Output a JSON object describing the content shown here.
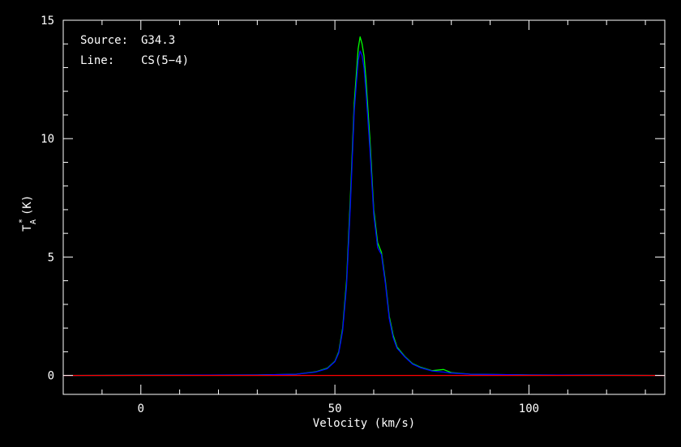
{
  "chart_data": {
    "type": "line",
    "title": "",
    "annotations": {
      "source_key": "Source:",
      "source_value": "G34.3",
      "line_key": "Line:",
      "line_value": "CS(5−4)"
    },
    "xlabel": "Velocity (km/s)",
    "ylabel_main": "T",
    "ylabel_sub": "A",
    "ylabel_sup": "*",
    "ylabel_unit": "(K)",
    "xlim": [
      -20,
      135
    ],
    "ylim": [
      -0.8,
      15
    ],
    "x_ticks": [
      0,
      50,
      100
    ],
    "y_ticks": [
      0,
      5,
      10,
      15
    ],
    "x_minor_step": 10,
    "y_minor_step": 1,
    "grid": false,
    "background": "#000000",
    "axis_color": "#ffffff",
    "series": [
      {
        "color": "#00ff00",
        "x": [
          -20,
          30,
          40,
          45,
          48,
          50,
          51,
          52,
          53,
          54,
          55,
          56,
          56.5,
          57,
          57.5,
          58,
          59,
          60,
          61,
          62,
          63,
          64,
          65,
          66,
          68,
          70,
          72,
          75,
          78,
          80,
          85,
          90,
          100,
          135
        ],
        "values": [
          0,
          0.02,
          0.05,
          0.15,
          0.3,
          0.6,
          1.0,
          2.0,
          4.0,
          7.5,
          11.5,
          13.8,
          14.3,
          14.0,
          13.5,
          12.5,
          10.0,
          7.0,
          5.6,
          5.2,
          4.0,
          2.5,
          1.7,
          1.2,
          0.8,
          0.5,
          0.35,
          0.2,
          0.25,
          0.12,
          0.05,
          0.04,
          0.02,
          0.0
        ]
      },
      {
        "color": "#0000ff",
        "x": [
          -20,
          30,
          40,
          45,
          48,
          50,
          51,
          52,
          53,
          54,
          55,
          56,
          56.5,
          57,
          57.5,
          58,
          59,
          60,
          61,
          62,
          63,
          64,
          65,
          66,
          68,
          70,
          72,
          75,
          78,
          80,
          85,
          90,
          100,
          135
        ],
        "values": [
          0,
          0.02,
          0.05,
          0.14,
          0.28,
          0.58,
          0.95,
          1.9,
          3.8,
          7.2,
          11.2,
          13.3,
          13.7,
          13.5,
          13.0,
          12.0,
          9.6,
          6.8,
          5.4,
          5.1,
          3.9,
          2.4,
          1.6,
          1.15,
          0.78,
          0.48,
          0.33,
          0.19,
          0.14,
          0.1,
          0.05,
          0.04,
          0.02,
          0.0
        ]
      },
      {
        "color": "#ff0000",
        "x": [
          -20,
          135
        ],
        "values": [
          0,
          0
        ]
      }
    ]
  }
}
